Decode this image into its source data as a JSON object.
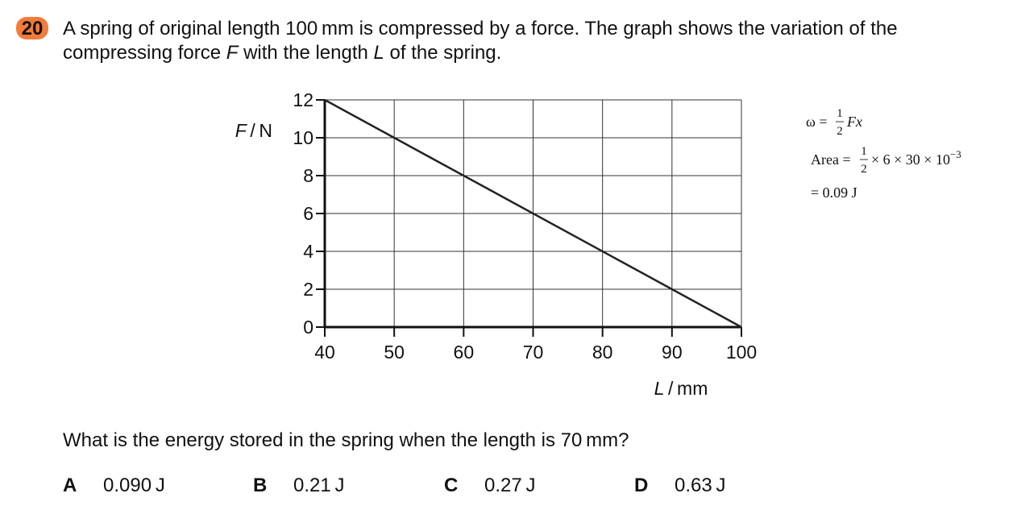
{
  "question": {
    "number": "20",
    "text_lines": [
      [
        "A spring of original length 100 mm is compressed by a force. The graph shows the variation of the"
      ],
      [
        "compressing force ",
        "F",
        " with the length ",
        "L",
        " of the spring."
      ]
    ],
    "prompt": "What is the energy stored in the spring when the length is 70 mm?",
    "options": [
      {
        "letter": "A",
        "text": "0.090 J"
      },
      {
        "letter": "B",
        "text": "0.21 J"
      },
      {
        "letter": "C",
        "text": "0.27 J"
      },
      {
        "letter": "D",
        "text": "0.63 J"
      }
    ]
  },
  "chart_data": {
    "type": "line",
    "x": [
      40,
      100
    ],
    "series": [
      {
        "color": "#222222",
        "values": [
          12,
          0
        ]
      }
    ],
    "xlim": [
      40,
      100
    ],
    "xticks": [
      40,
      50,
      60,
      70,
      80,
      90,
      100
    ],
    "ylim": [
      0,
      12
    ],
    "yticks": [
      0,
      2,
      4,
      6,
      8,
      10,
      12
    ],
    "grid": true,
    "xlabel": [
      "L",
      " / mm"
    ],
    "ylabel": [
      "F",
      " / N"
    ]
  },
  "notes": [
    {
      "lhs": "ω =",
      "num": "1",
      "den": "2",
      "rhs": "Fx"
    },
    {
      "lhs": "Area =",
      "num": "1",
      "den": "2",
      "rhs": "× 6 × 30 × 10",
      "sup": "−3"
    },
    {
      "lhs": "= 0.09 J"
    }
  ]
}
